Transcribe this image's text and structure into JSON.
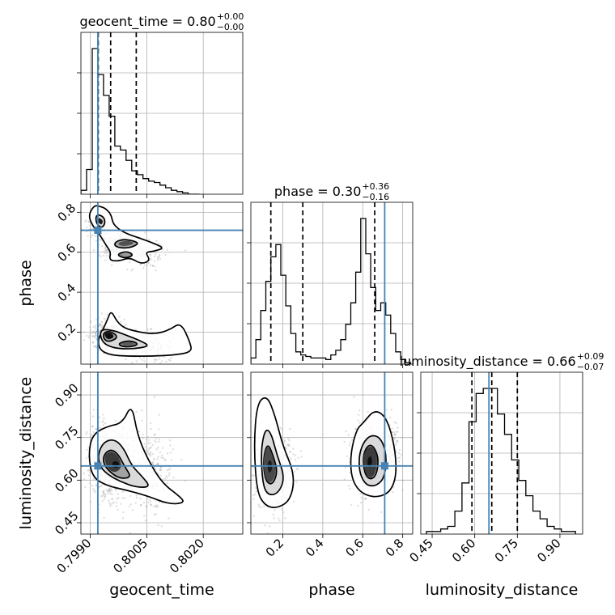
{
  "chart_data": {
    "type": "corner",
    "parameters": [
      "geocent_time",
      "phase",
      "luminosity_distance"
    ],
    "truths": {
      "geocent_time": 0.7992,
      "phase": 0.71,
      "luminosity_distance": 0.65
    },
    "titles": [
      {
        "param": "geocent_time",
        "text": "geocent_time = 0.80",
        "plus": "+0.00",
        "minus": "−0.00"
      },
      {
        "param": "phase",
        "text": "phase = 0.30",
        "plus": "+0.36",
        "minus": "−0.16"
      },
      {
        "param": "luminosity_distance",
        "text": "luminosity_distance = 0.66",
        "plus": "+0.09",
        "minus": "−0.07"
      }
    ],
    "axis_labels": {
      "geocent_time": "geocent_time",
      "phase": "phase",
      "luminosity_distance": "luminosity_distance"
    },
    "ranges": {
      "geocent_time": [
        0.79875,
        0.80305
      ],
      "phase": [
        0.04,
        0.85
      ],
      "luminosity_distance": [
        0.41,
        0.98
      ]
    },
    "ticks": {
      "geocent_time": {
        "values": [
          0.799,
          0.8005,
          0.802
        ],
        "labels": [
          "0.7990",
          "0.8005",
          "0.8020"
        ]
      },
      "phase": {
        "values": [
          0.2,
          0.4,
          0.6,
          0.8
        ],
        "labels": [
          "0.2",
          "0.4",
          "0.6",
          "0.8"
        ]
      },
      "luminosity_distance": {
        "values": [
          0.45,
          0.6,
          0.75,
          0.9
        ],
        "labels": [
          "0.45",
          "0.60",
          "0.75",
          "0.90"
        ]
      }
    },
    "quantiles": {
      "geocent_time": [
        0.79921,
        0.79954,
        0.80022
      ],
      "phase": [
        0.14,
        0.3,
        0.66
      ],
      "luminosity_distance": [
        0.59,
        0.66,
        0.75
      ]
    },
    "histograms": {
      "geocent_time": {
        "edges": [
          0.79875,
          0.7989,
          0.79905,
          0.7992,
          0.79935,
          0.7995,
          0.79965,
          0.7998,
          0.79995,
          0.8001,
          0.80025,
          0.8004,
          0.80055,
          0.8007,
          0.80085,
          0.801,
          0.80115,
          0.8013,
          0.80145,
          0.8016,
          0.80175,
          0.8019
        ],
        "counts": [
          3,
          19,
          112,
          92,
          76,
          60,
          37,
          34,
          26,
          18,
          15,
          12,
          10,
          9,
          7,
          5,
          3,
          2,
          1,
          0,
          0
        ]
      },
      "phase": {
        "edges": [
          0.04,
          0.065,
          0.09,
          0.115,
          0.14,
          0.165,
          0.19,
          0.215,
          0.24,
          0.265,
          0.29,
          0.315,
          0.34,
          0.365,
          0.39,
          0.415,
          0.44,
          0.465,
          0.49,
          0.515,
          0.54,
          0.565,
          0.59,
          0.615,
          0.64,
          0.665,
          0.69,
          0.715,
          0.74,
          0.765,
          0.79,
          0.815,
          0.84
        ],
        "counts": [
          4,
          16,
          35,
          54,
          70,
          78,
          58,
          38,
          20,
          8,
          6,
          5,
          4,
          4,
          4,
          3,
          6,
          9,
          16,
          26,
          40,
          60,
          95,
          72,
          50,
          35,
          40,
          32,
          20,
          8,
          3,
          1
        ]
      },
      "luminosity_distance": {
        "edges": [
          0.43,
          0.455,
          0.48,
          0.505,
          0.53,
          0.555,
          0.58,
          0.605,
          0.63,
          0.655,
          0.68,
          0.705,
          0.73,
          0.755,
          0.78,
          0.805,
          0.83,
          0.855,
          0.88,
          0.905,
          0.93,
          0.955
        ],
        "counts": [
          1,
          1,
          2,
          3,
          9,
          20,
          44,
          55,
          57,
          57,
          47,
          39,
          29,
          21,
          15,
          9,
          6,
          3,
          2,
          1,
          1
        ]
      }
    }
  }
}
